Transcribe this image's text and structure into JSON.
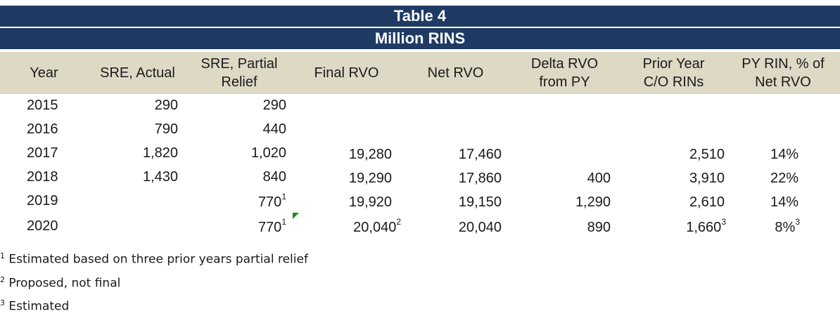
{
  "title": "Table 4",
  "subtitle": "Million RINS",
  "columns": [
    "Year",
    "SRE, Actual",
    "SRE, Partial\nRelief",
    "Final RVO",
    "Net RVO",
    "Delta RVO\nfrom PY",
    "Prior Year\nC/O RINs",
    "PY RIN, % of\nNet RVO"
  ],
  "rows": [
    {
      "year": "2015",
      "sre_actual": "290",
      "sre_partial": "290",
      "sre_partial_note": "",
      "final_rvo": "",
      "final_rvo_note": "",
      "net_rvo": "",
      "delta_rvo": "",
      "prior_co": "",
      "prior_co_note": "",
      "py_pct": "",
      "py_pct_note": ""
    },
    {
      "year": "2016",
      "sre_actual": "790",
      "sre_partial": "440",
      "sre_partial_note": "",
      "final_rvo": "",
      "final_rvo_note": "",
      "net_rvo": "",
      "delta_rvo": "",
      "prior_co": "",
      "prior_co_note": "",
      "py_pct": "",
      "py_pct_note": ""
    },
    {
      "year": "2017",
      "sre_actual": "1,820",
      "sre_partial": "1,020",
      "sre_partial_note": "",
      "final_rvo": "19,280",
      "final_rvo_note": "",
      "net_rvo": "17,460",
      "delta_rvo": "",
      "prior_co": "2,510",
      "prior_co_note": "",
      "py_pct": "14%",
      "py_pct_note": ""
    },
    {
      "year": "2018",
      "sre_actual": "1,430",
      "sre_partial": "840",
      "sre_partial_note": "",
      "final_rvo": "19,290",
      "final_rvo_note": "",
      "net_rvo": "17,860",
      "delta_rvo": "400",
      "prior_co": "3,910",
      "prior_co_note": "",
      "py_pct": "22%",
      "py_pct_note": ""
    },
    {
      "year": "2019",
      "sre_actual": "",
      "sre_partial": "770",
      "sre_partial_note": "1",
      "final_rvo": "19,920",
      "final_rvo_note": "",
      "net_rvo": "19,150",
      "delta_rvo": "1,290",
      "prior_co": "2,610",
      "prior_co_note": "",
      "py_pct": "14%",
      "py_pct_note": ""
    },
    {
      "year": "2020",
      "sre_actual": "",
      "sre_partial": "770",
      "sre_partial_note": "1",
      "final_rvo": "20,040",
      "final_rvo_note": "2",
      "net_rvo": "20,040",
      "delta_rvo": "890",
      "prior_co": "1,660",
      "prior_co_note": "3",
      "py_pct": "8%",
      "py_pct_note": "3"
    }
  ],
  "footnotes": [
    {
      "mark": "1",
      "text": "Estimated based on three prior years partial relief"
    },
    {
      "mark": "2",
      "text": "Proposed, not final"
    },
    {
      "mark": "3",
      "text": "Estimated"
    }
  ],
  "colors": {
    "title_bg": "#1f3b64",
    "header_bg": "#ddd9c5",
    "comment_marker": "#1e8a1e"
  }
}
